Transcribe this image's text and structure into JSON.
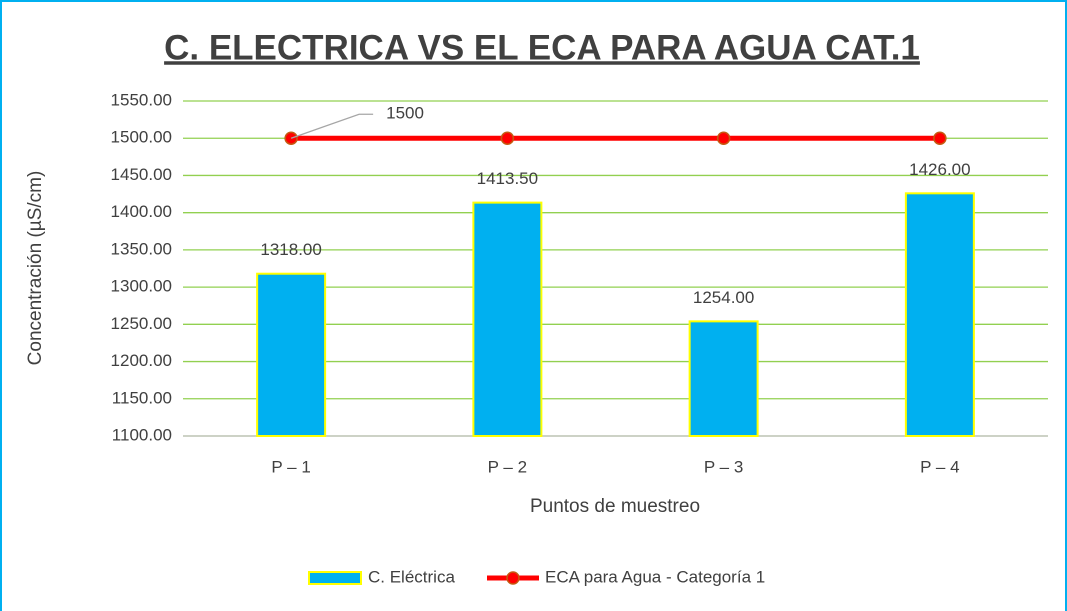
{
  "chart_data": {
    "type": "bar",
    "title": "C. ELECTRICA VS EL ECA PARA AGUA CAT.1",
    "x_label": "Puntos de muestreo",
    "y_label": "Concentración (µS/cm)",
    "categories": [
      "P – 1",
      "P – 2",
      "P – 3",
      "P – 4"
    ],
    "series": [
      {
        "name": "C. Eléctrica",
        "type": "bar",
        "color": "#00b0f0",
        "edge_color": "#ffff00",
        "values": [
          1318.0,
          1413.5,
          1254.0,
          1426.0
        ],
        "value_labels": [
          "1318.00",
          "1413.50",
          "1254.00",
          "1426.00"
        ]
      },
      {
        "name": "ECA para Agua - Categoría 1",
        "type": "line",
        "color": "#ff0000",
        "values": [
          1500,
          1500,
          1500,
          1500
        ],
        "value_labels": [
          "1500",
          null,
          null,
          null
        ]
      }
    ],
    "ylim": [
      1100,
      1550
    ],
    "yticks": [
      {
        "value": 1100,
        "label": "1100.00"
      },
      {
        "value": 1150,
        "label": "1150.00"
      },
      {
        "value": 1200,
        "label": "1200.00"
      },
      {
        "value": 1250,
        "label": "1250.00"
      },
      {
        "value": 1300,
        "label": "1300.00"
      },
      {
        "value": 1350,
        "label": "1350.00"
      },
      {
        "value": 1400,
        "label": "1400.00"
      },
      {
        "value": 1450,
        "label": "1450.00"
      },
      {
        "value": 1500,
        "label": "1500.00"
      },
      {
        "value": 1550,
        "label": "1550.00"
      }
    ],
    "grid": true,
    "grid_color": "#92d050",
    "legend": "bottom"
  }
}
